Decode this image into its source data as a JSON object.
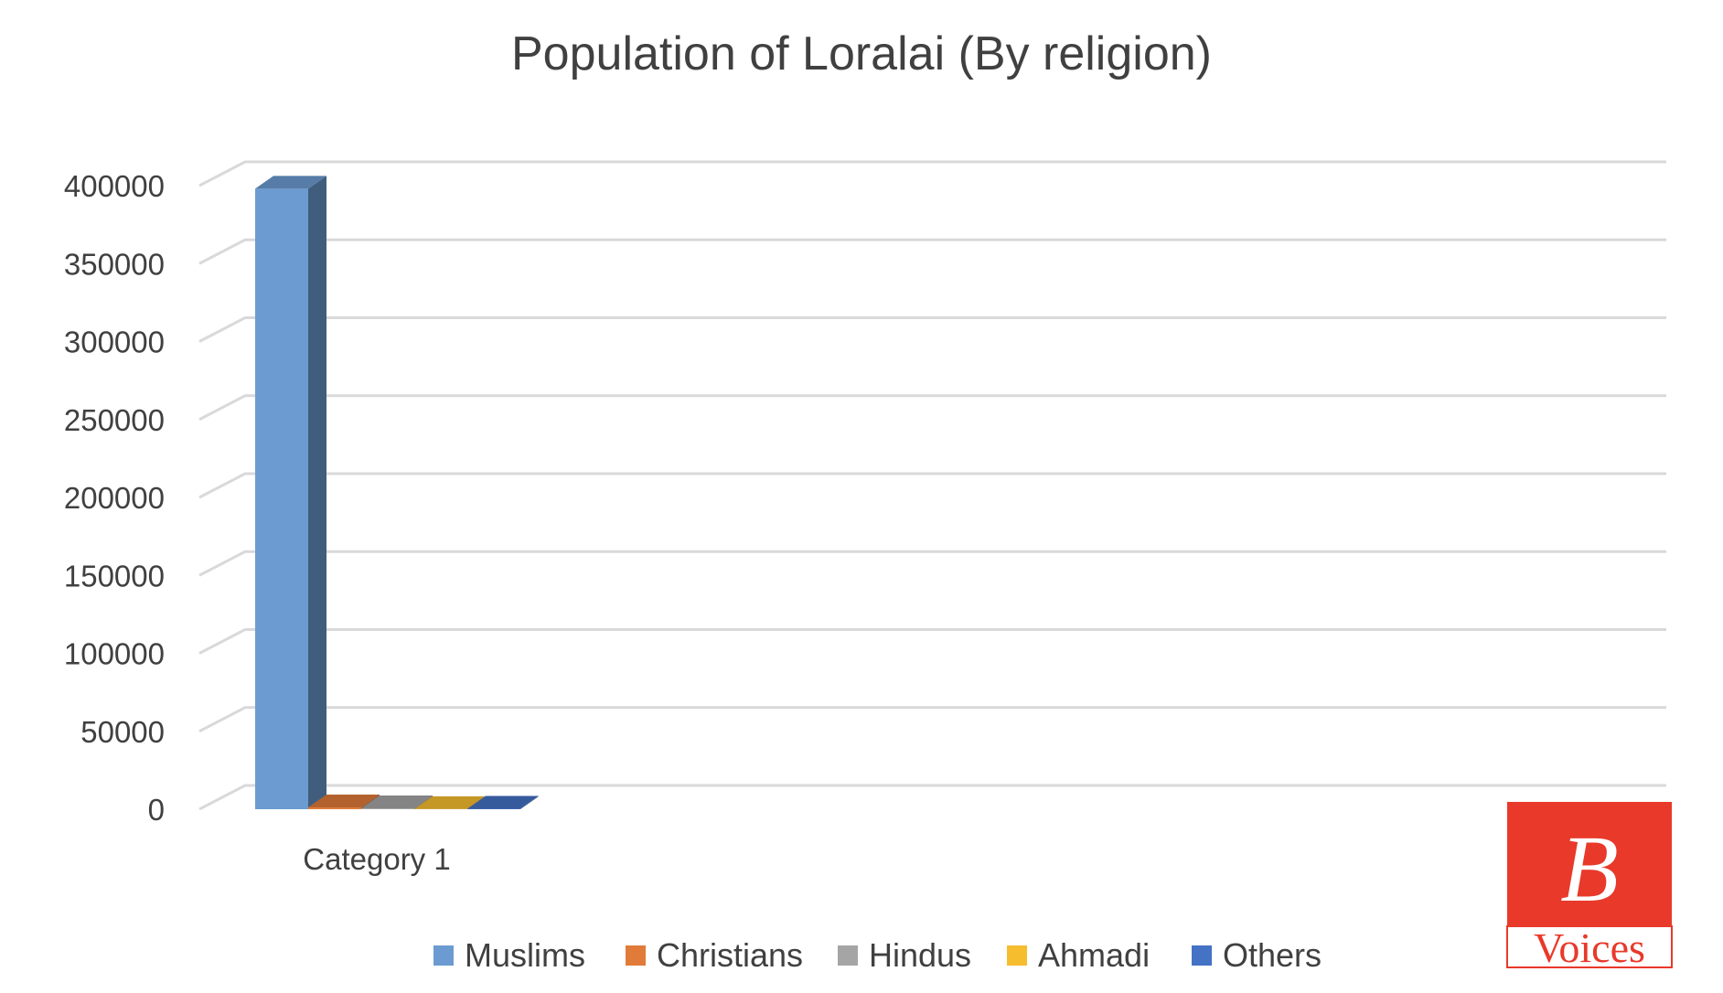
{
  "chart_data": {
    "type": "bar",
    "title": "Population of Loralai (By religion)",
    "categories": [
      "Category 1"
    ],
    "series": [
      {
        "name": "Muslims",
        "values": [
          398000
        ],
        "color": "#6b9bd1"
      },
      {
        "name": "Christians",
        "values": [
          1200
        ],
        "color": "#e07b39"
      },
      {
        "name": "Hindus",
        "values": [
          600
        ],
        "color": "#a5a5a5"
      },
      {
        "name": "Ahmadi",
        "values": [
          100
        ],
        "color": "#f6bd2e"
      },
      {
        "name": "Others",
        "values": [
          300
        ],
        "color": "#4472c4"
      }
    ],
    "yticks": [
      "0",
      "50000",
      "100000",
      "150000",
      "200000",
      "250000",
      "300000",
      "350000",
      "400000"
    ],
    "ylim": [
      0,
      400000
    ],
    "xlabel": "",
    "ylabel": "",
    "grid": true,
    "three_d": true,
    "legend_position": "bottom"
  },
  "logo": {
    "letter": "B",
    "word": "Voices",
    "color": "#e8392a"
  }
}
